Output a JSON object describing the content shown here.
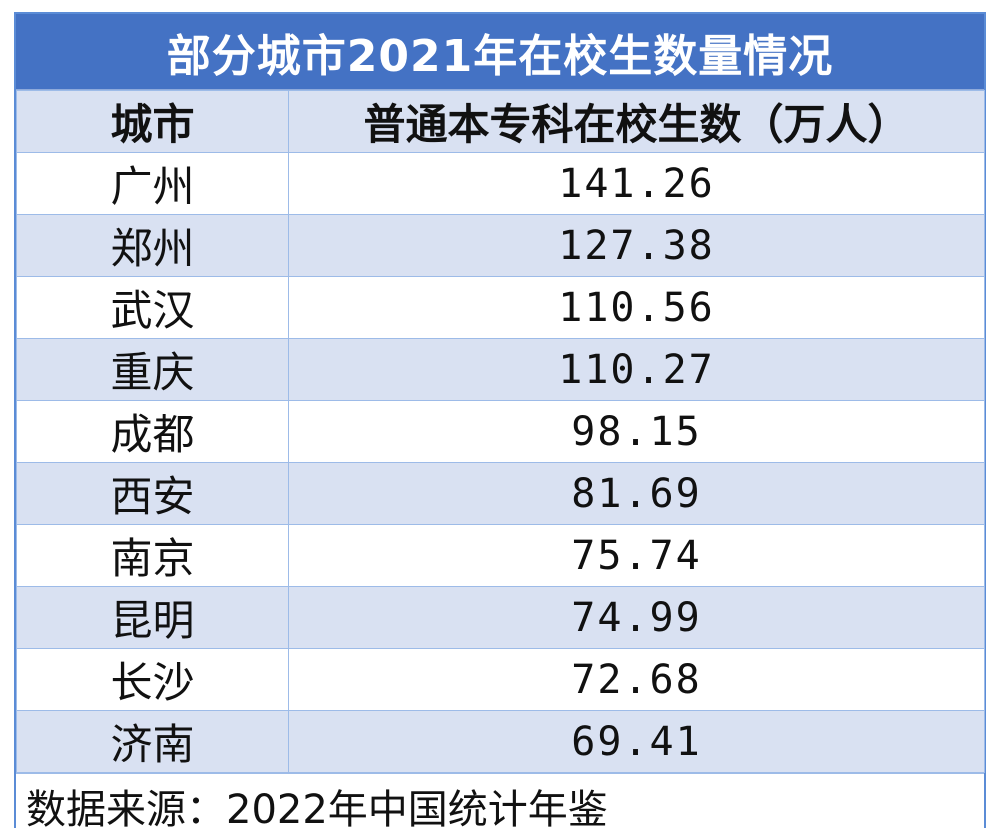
{
  "title": "部分城市2021年在校生数量情况",
  "columns": [
    "城市",
    "普通本专科在校生数（万人）"
  ],
  "rows": [
    {
      "city": "广州",
      "value": "141.26"
    },
    {
      "city": "郑州",
      "value": "127.38"
    },
    {
      "city": "武汉",
      "value": "110.56"
    },
    {
      "city": "重庆",
      "value": "110.27"
    },
    {
      "city": "成都",
      "value": "98.15"
    },
    {
      "city": "西安",
      "value": "81.69"
    },
    {
      "city": "南京",
      "value": "75.74"
    },
    {
      "city": "昆明",
      "value": "74.99"
    },
    {
      "city": "长沙",
      "value": "72.68"
    },
    {
      "city": "济南",
      "value": "69.41"
    }
  ],
  "source": "数据来源：2022年中国统计年鉴",
  "colors": {
    "header_bg": "#4472c4",
    "band": "#d9e1f2",
    "border": "#9dbbe8"
  }
}
